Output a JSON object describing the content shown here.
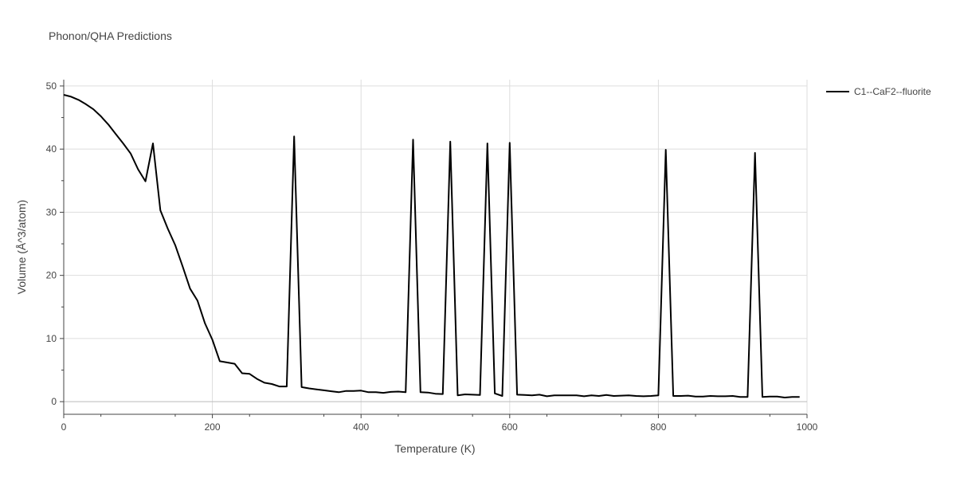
{
  "chart_data": {
    "type": "line",
    "title": "Phonon/QHA Predictions",
    "xlabel": "Temperature (K)",
    "ylabel": "Volume (Å^3/atom)",
    "xlim": [
      0,
      1000
    ],
    "ylim": [
      -2,
      51
    ],
    "x_ticks": [
      0,
      200,
      400,
      600,
      800,
      1000
    ],
    "y_ticks": [
      0,
      10,
      20,
      30,
      40,
      50
    ],
    "x_tick_labels": [
      "0",
      "200",
      "400",
      "600",
      "800",
      "1000"
    ],
    "y_tick_labels": [
      "0",
      "10",
      "20",
      "30",
      "40",
      "50"
    ],
    "grid": true,
    "legend_position": "top-right",
    "series": [
      {
        "name": "C1--CaF2--fluorite",
        "color": "#000000",
        "x": [
          0,
          10,
          20,
          30,
          40,
          50,
          60,
          70,
          80,
          90,
          100,
          110,
          120,
          130,
          140,
          150,
          160,
          170,
          180,
          190,
          200,
          210,
          220,
          230,
          240,
          250,
          260,
          270,
          280,
          290,
          300,
          310,
          320,
          330,
          340,
          350,
          360,
          370,
          380,
          390,
          400,
          410,
          420,
          430,
          440,
          450,
          460,
          470,
          480,
          490,
          500,
          510,
          520,
          530,
          540,
          550,
          560,
          570,
          580,
          590,
          600,
          610,
          620,
          630,
          640,
          650,
          660,
          670,
          680,
          690,
          700,
          710,
          720,
          730,
          740,
          750,
          760,
          770,
          780,
          790,
          800,
          810,
          820,
          830,
          840,
          850,
          860,
          870,
          880,
          890,
          900,
          910,
          920,
          930,
          940,
          950,
          960,
          970,
          980,
          990
        ],
        "y": [
          48.6,
          48.3,
          47.8,
          47.1,
          46.3,
          45.2,
          43.9,
          42.4,
          40.9,
          39.3,
          36.8,
          34.9,
          40.9,
          30.3,
          27.4,
          24.8,
          21.4,
          17.9,
          16.0,
          12.4,
          9.8,
          6.4,
          6.2,
          6.0,
          4.5,
          4.4,
          3.6,
          3.0,
          2.8,
          2.4,
          2.4,
          42.0,
          2.3,
          2.1,
          1.95,
          1.8,
          1.65,
          1.5,
          1.7,
          1.7,
          1.75,
          1.5,
          1.5,
          1.4,
          1.55,
          1.6,
          1.5,
          41.5,
          1.5,
          1.45,
          1.25,
          1.2,
          41.2,
          1.0,
          1.15,
          1.1,
          1.05,
          40.9,
          1.3,
          0.9,
          41.0,
          1.1,
          1.05,
          1.0,
          1.1,
          0.85,
          1.0,
          1.0,
          1.0,
          1.0,
          0.85,
          1.0,
          0.9,
          1.05,
          0.9,
          0.95,
          1.0,
          0.9,
          0.85,
          0.9,
          1.0,
          39.9,
          0.9,
          0.9,
          0.95,
          0.8,
          0.8,
          0.9,
          0.85,
          0.85,
          0.9,
          0.75,
          0.75,
          39.4,
          0.75,
          0.8,
          0.8,
          0.65,
          0.75,
          0.75
        ]
      }
    ]
  }
}
